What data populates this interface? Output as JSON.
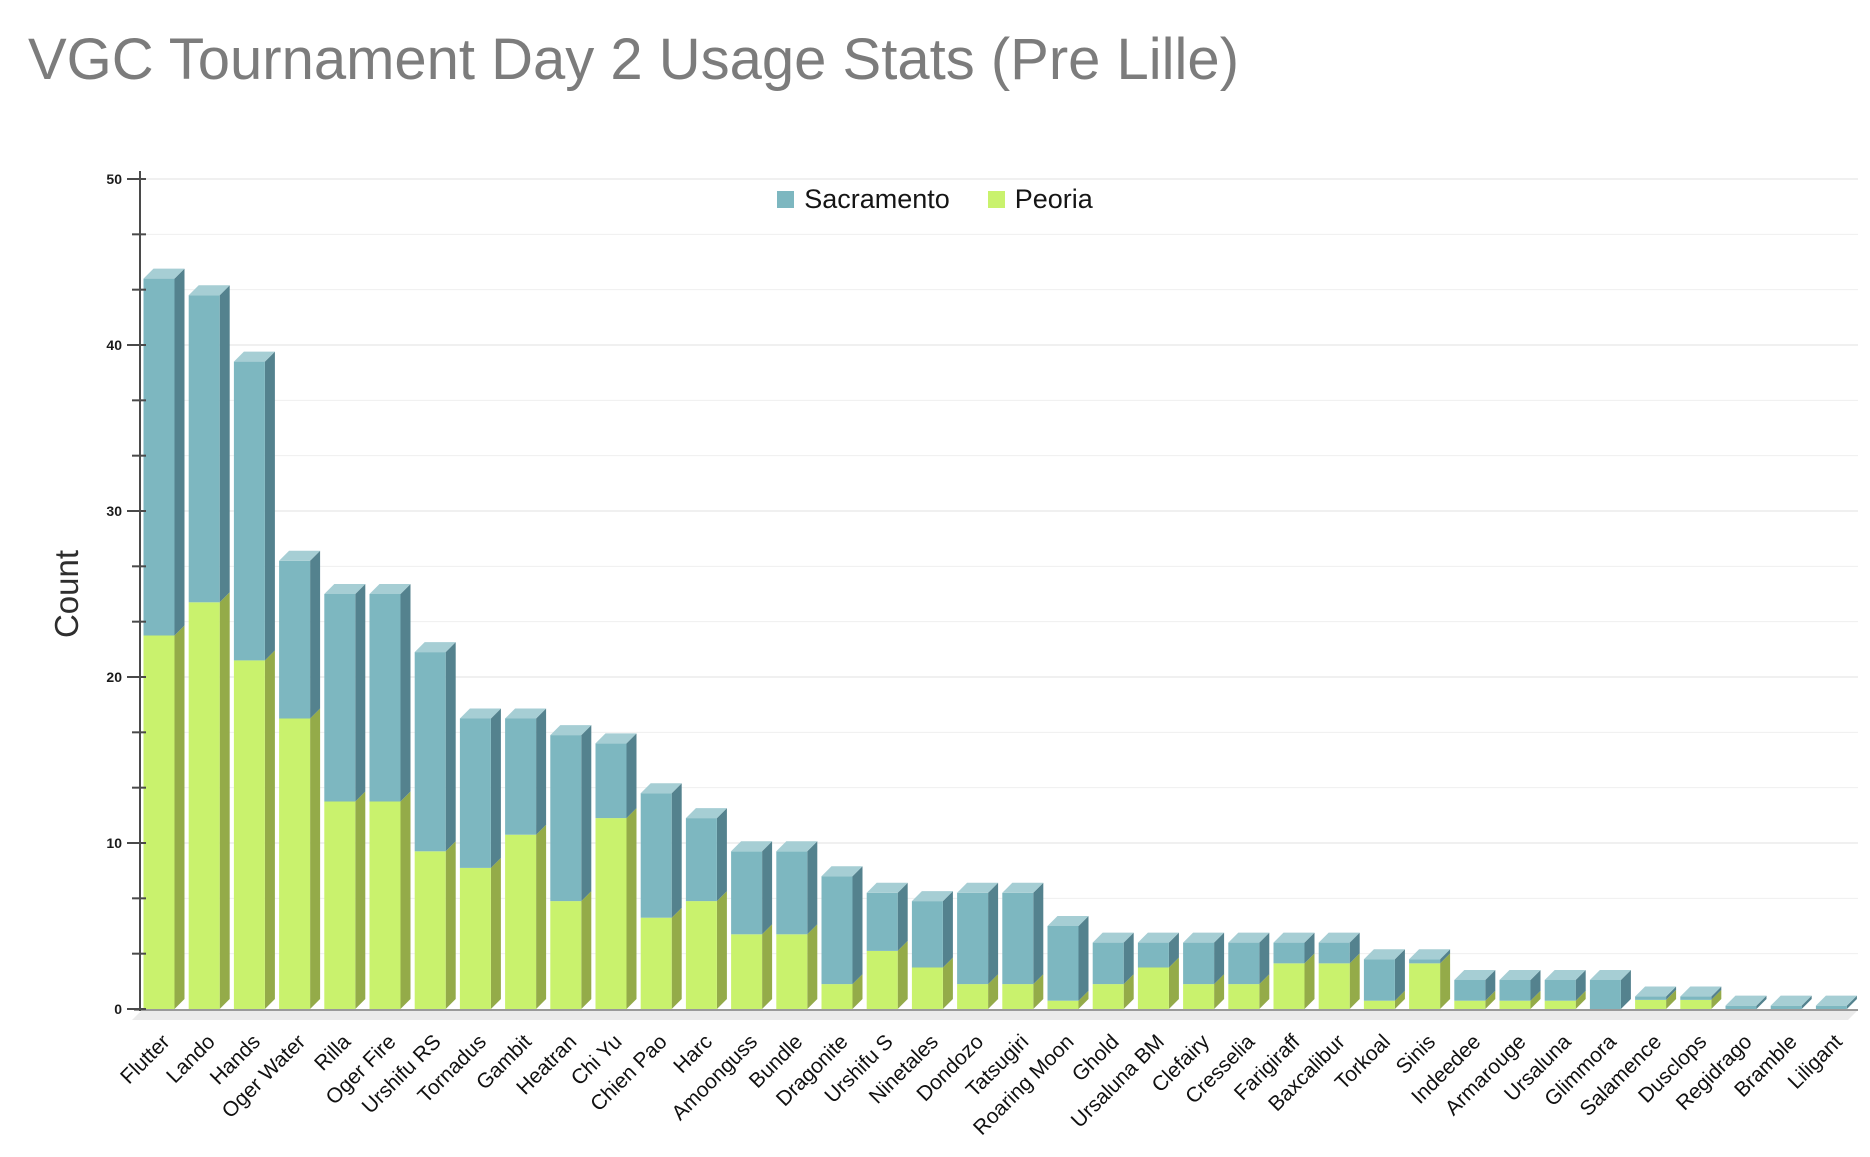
{
  "title": "VGC Tournament Day 2 Usage Stats (Pre Lille)",
  "legend": {
    "items": [
      {
        "label": "Sacramento",
        "color": "#7db7c0"
      },
      {
        "label": "Peoria",
        "color": "#c9f26d"
      }
    ]
  },
  "y_axis": {
    "label": "Count",
    "min": 0,
    "max": 50,
    "major_tick_interval": 10,
    "minor_ticks_per_major": 3,
    "tick_labels": [
      "0",
      "10",
      "20",
      "30",
      "40",
      "50"
    ]
  },
  "chart_data": {
    "type": "bar",
    "stacked": true,
    "style": "pseudo-3d columns",
    "title": "VGC Tournament Day 2 Usage Stats (Pre Lille)",
    "xlabel": "",
    "ylabel": "Count",
    "ylim": [
      0,
      50
    ],
    "grid": true,
    "legend_position": "top-center",
    "categories": [
      "Flutter",
      "Lando",
      "Hands",
      "Oger Water",
      "Rilla",
      "Oger Fire",
      "Urshifu RS",
      "Tornadus",
      "Gambit",
      "Heatran",
      "Chi Yu",
      "Chien Pao",
      "Harc",
      "Amoonguss",
      "Bundle",
      "Dragonite",
      "Urshifu S",
      "Ninetales",
      "Dondozo",
      "Tatsugiri",
      "Roaring Moon",
      "Ghold",
      "Ursaluna BM",
      "Clefairy",
      "Cresselia",
      "Farigiraff",
      "Baxcalibur",
      "Torkoal",
      "Sinis",
      "Indeedee",
      "Armarouge",
      "Ursaluna",
      "Glimmora",
      "Salamence",
      "Dusclops",
      "Regidrago",
      "Bramble",
      "Liligant"
    ],
    "series": [
      {
        "name": "Peoria",
        "stack_position": "bottom",
        "color": "#c9f26d",
        "values": [
          22.5,
          24.5,
          21,
          17.5,
          12.5,
          12.5,
          9.5,
          8.5,
          10.5,
          6.5,
          11.5,
          5.5,
          6.5,
          4.5,
          4.5,
          1.5,
          3.5,
          2.5,
          1.5,
          1.5,
          0.5,
          1.5,
          2.5,
          1.5,
          1.5,
          2.75,
          2.75,
          0.5,
          2.75,
          0.5,
          0.5,
          0.5,
          0,
          0.55,
          0.55,
          0,
          0,
          0
        ]
      },
      {
        "name": "Sacramento",
        "stack_position": "top",
        "color": "#7db7c0",
        "values": [
          21.5,
          18.5,
          18,
          9.5,
          12.5,
          12.5,
          12,
          9,
          7,
          10,
          4.5,
          7.5,
          5,
          5,
          5,
          6.5,
          3.5,
          4,
          5.5,
          5.5,
          4.5,
          2.5,
          1.5,
          2.5,
          2.5,
          1.25,
          1.25,
          2.5,
          0.25,
          1.25,
          1.25,
          1.25,
          1.75,
          0.2,
          0.2,
          0.2,
          0.2,
          0.2
        ]
      }
    ]
  },
  "colors": {
    "title_text": "#7c7c7c",
    "axis_line": "#4a4a4a",
    "tick_label": "#1c1c1c",
    "category_label": "#111111",
    "count_label": "#2e2e2e",
    "gridline_major": "#e2e2e2",
    "gridline_minor": "#efefef",
    "baseline": "#9a9a9a",
    "floor_fill": "#ebebeb",
    "sacramento_front": "#7db7c0",
    "sacramento_side": "#54828e",
    "sacramento_top": "#a6ced4",
    "peoria_front": "#c9f26d",
    "peoria_side": "#94ab49",
    "peoria_top": "#def7a6"
  }
}
